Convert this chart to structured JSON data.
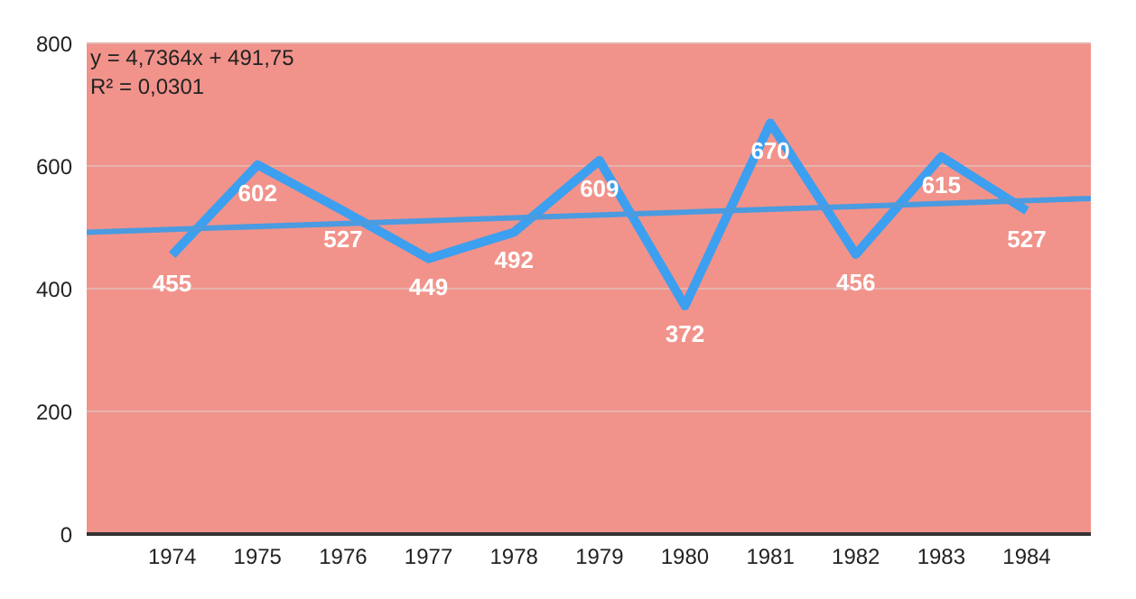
{
  "chart_data": {
    "type": "line",
    "x": [
      1974,
      1975,
      1976,
      1977,
      1978,
      1979,
      1980,
      1981,
      1982,
      1983,
      1984
    ],
    "series": [
      {
        "color": "#3d9fef",
        "values": [
          455,
          602,
          527,
          449,
          492,
          609,
          372,
          670,
          456,
          615,
          527
        ],
        "value_labels": [
          "455",
          "602",
          "527",
          "449",
          "492",
          "609",
          "372",
          "670",
          "456",
          "615",
          "527"
        ]
      },
      {
        "type": "line",
        "color": "#4a9be0",
        "x": [
          1973,
          1984.75
        ],
        "values": [
          492,
          547
        ]
      }
    ],
    "xlim": [
      1973,
      1984.75
    ],
    "xticks": [
      1974,
      1975,
      1976,
      1977,
      1978,
      1979,
      1980,
      1981,
      1982,
      1983,
      1984
    ],
    "ylim": [
      0,
      800
    ],
    "yticks": [
      0,
      200,
      400,
      600,
      800
    ],
    "grid": "y",
    "marker": "none",
    "line_style": "solid",
    "annotations": [
      "y = 4,7364x + 491,75",
      "R² = 0,0301"
    ]
  }
}
